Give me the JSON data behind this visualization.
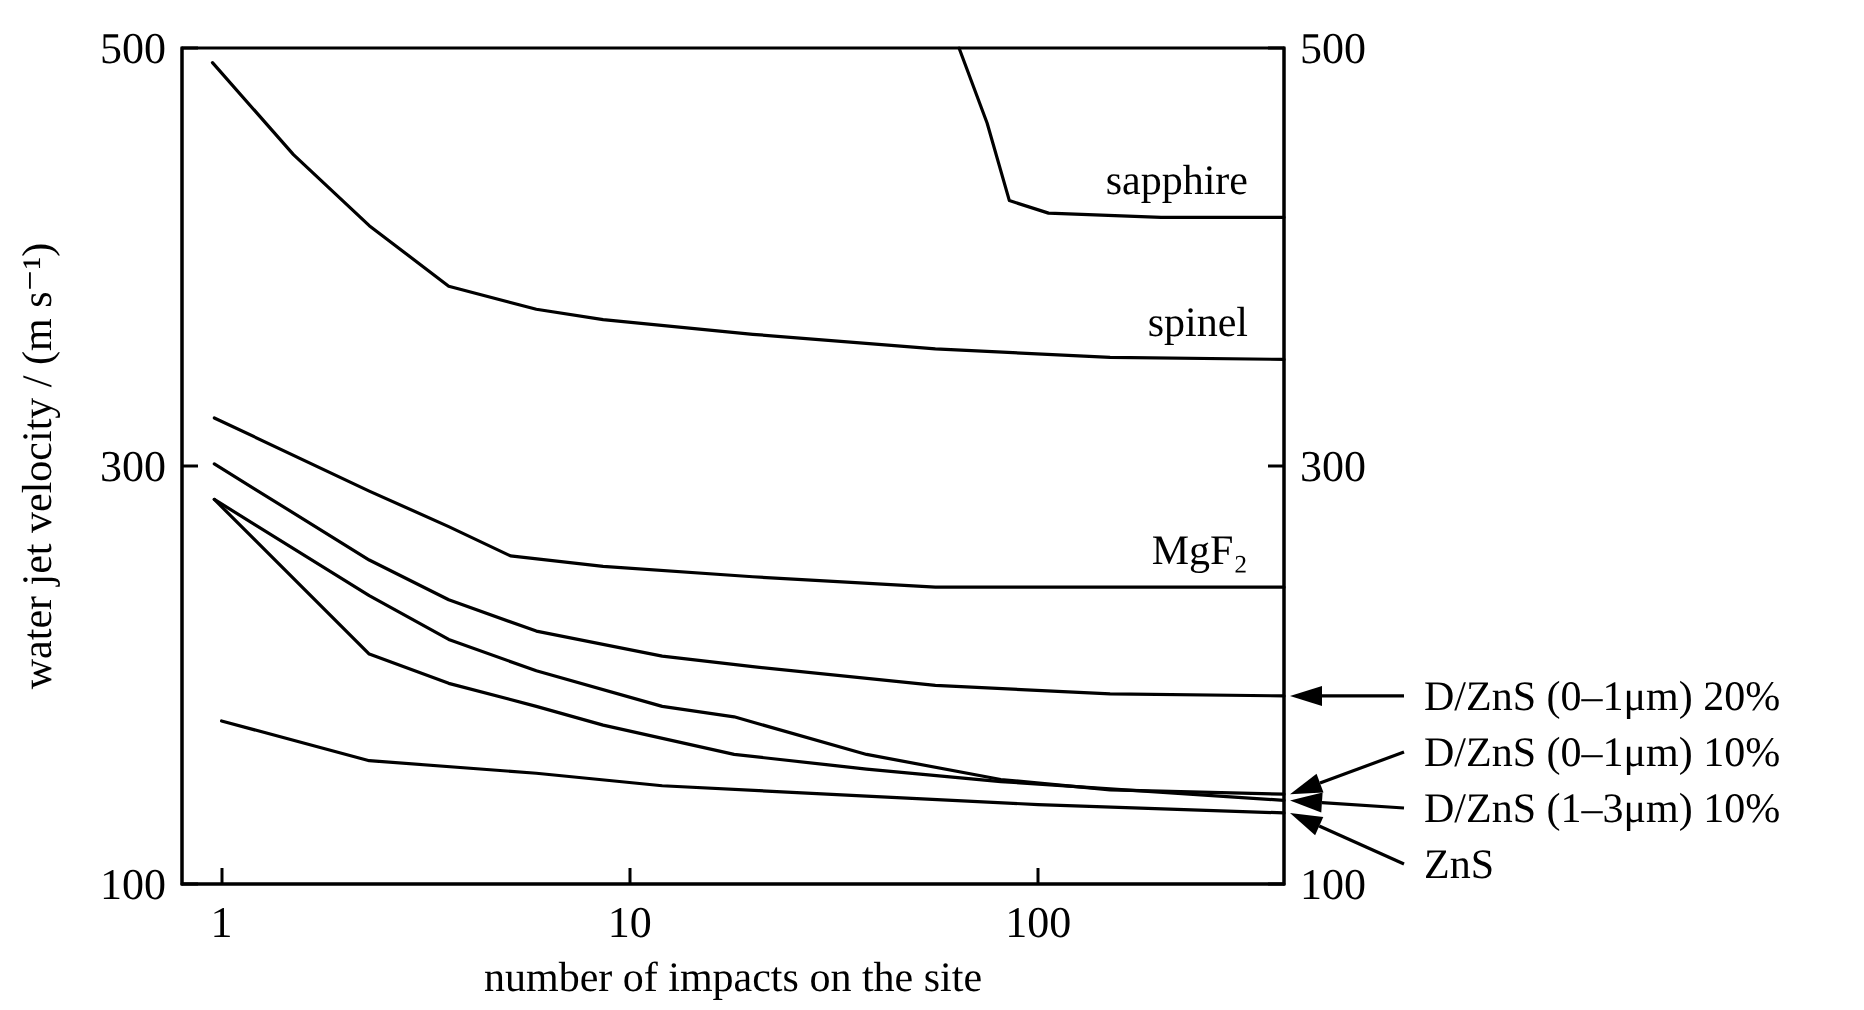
{
  "chart_data": {
    "type": "line",
    "xlabel": "number of impacts on the site",
    "ylabel": "water jet velocity / (m s⁻¹)",
    "log": "x",
    "xlim": [
      0.8,
      400
    ],
    "xticks": [
      1,
      10,
      100
    ],
    "ylim": [
      100,
      500
    ],
    "yticks": [
      100,
      300,
      500
    ],
    "y2lim": [
      100,
      500
    ],
    "y2ticks": [
      100,
      300,
      500
    ],
    "grid": false,
    "legend": "right",
    "marker": "none",
    "line_style": "solid",
    "series": [
      {
        "name": "sapphire",
        "color": "#000000",
        "x": [
          64,
          75,
          85,
          106,
          200,
          400
        ],
        "values": [
          500,
          464,
          427,
          421,
          419,
          419
        ]
      },
      {
        "name": "spinel",
        "color": "#000000",
        "x": [
          0.95,
          1.5,
          2.3,
          3.6,
          5.9,
          8.6,
          20,
          56,
          150,
          400
        ],
        "values": [
          493,
          449,
          415,
          386,
          375,
          370,
          363,
          356,
          352,
          351
        ]
      },
      {
        "name": "MgF₂",
        "color": "#000000",
        "x": [
          0.96,
          2.3,
          3.6,
          5.1,
          8.6,
          20,
          56,
          400
        ],
        "values": [
          323,
          288,
          271,
          257,
          252,
          247,
          242,
          242
        ]
      },
      {
        "name": "D/ZnS (0–1μm) 20%",
        "color": "#000000",
        "x": [
          0.96,
          2.3,
          3.6,
          5.9,
          12,
          20,
          56,
          150,
          400
        ],
        "values": [
          301,
          255,
          236,
          221,
          209,
          204,
          195,
          191,
          190
        ]
      },
      {
        "name": "D/ZnS (0–1μm) 10%",
        "color": "#000000",
        "x": [
          0.96,
          2.3,
          3.6,
          5.9,
          12,
          18,
          38,
          81,
          150,
          400
        ],
        "values": [
          284,
          238,
          217,
          202,
          185,
          180,
          162,
          150,
          145,
          143
        ]
      },
      {
        "name": "D/ZnS (1–3μm) 10%",
        "color": "#000000",
        "x": [
          0.96,
          2.3,
          3.6,
          5.9,
          8.6,
          18,
          38,
          81,
          400
        ],
        "values": [
          284,
          210,
          196,
          185,
          176,
          162,
          155,
          149,
          140
        ]
      },
      {
        "name": "ZnS",
        "color": "#000000",
        "x": [
          1,
          2.3,
          5.9,
          12,
          38,
          100,
          400
        ],
        "values": [
          178,
          159,
          153,
          147,
          142,
          138,
          134
        ]
      }
    ]
  }
}
